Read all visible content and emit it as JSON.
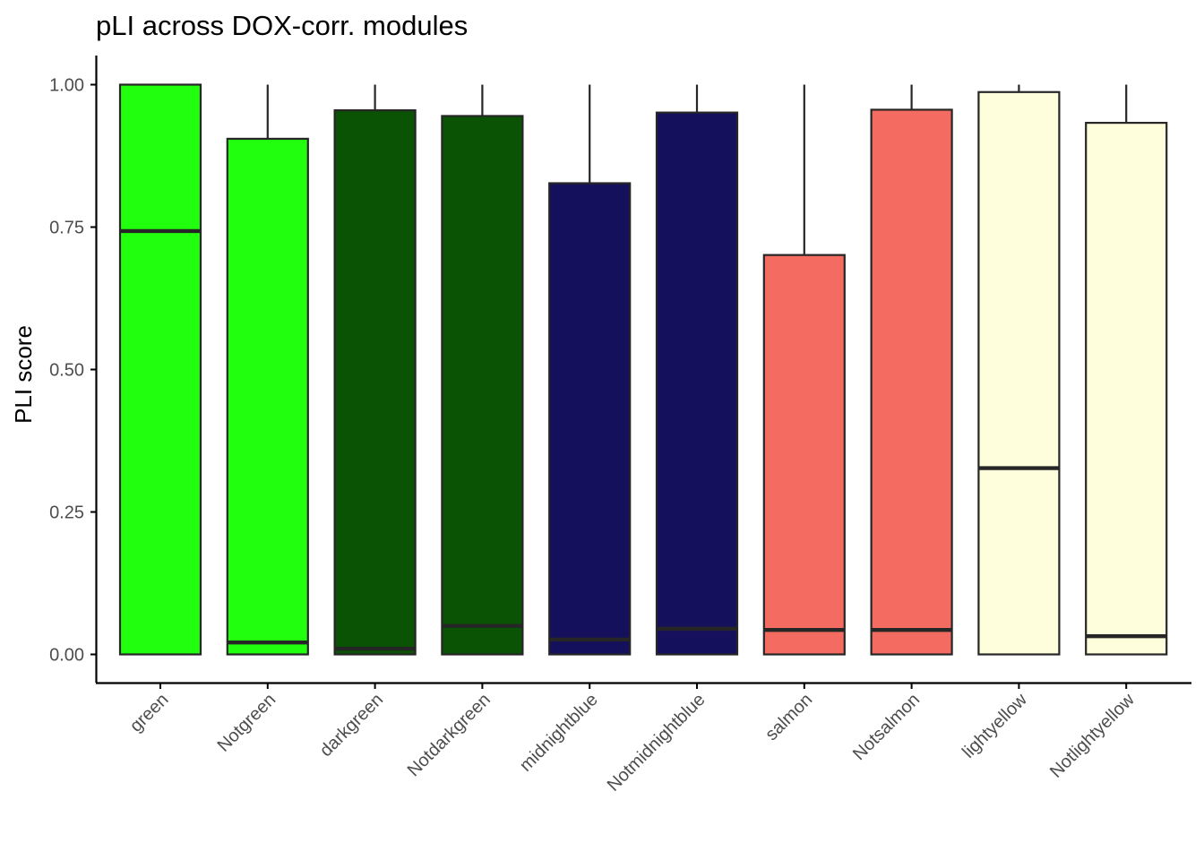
{
  "chart_data": {
    "type": "box",
    "title": "pLI across DOX-corr. modules",
    "xlabel": "",
    "ylabel": "PLI score",
    "ylim": [
      -0.05,
      1.05
    ],
    "yticks": [
      0.0,
      0.25,
      0.5,
      0.75,
      1.0
    ],
    "ytick_labels": [
      "0.00",
      "0.25",
      "0.50",
      "0.75",
      "1.00"
    ],
    "grid": false,
    "legend": "none",
    "categories": [
      "green",
      "Notgreen",
      "darkgreen",
      "Notdarkgreen",
      "midnightblue",
      "Notmidnightblue",
      "salmon",
      "Notsalmon",
      "lightyellow",
      "Notlightyellow"
    ],
    "boxes": [
      {
        "category": "green",
        "min": 0.0,
        "q1": 0.0,
        "median": 0.743,
        "q3": 1.0,
        "max": 1.0,
        "fill": "#22ff0e"
      },
      {
        "category": "Notgreen",
        "min": 0.0,
        "q1": 0.0,
        "median": 0.021,
        "q3": 0.905,
        "max": 1.0,
        "fill": "#22ff0e"
      },
      {
        "category": "darkgreen",
        "min": 0.0,
        "q1": 0.0,
        "median": 0.01,
        "q3": 0.955,
        "max": 1.0,
        "fill": "#0b5304"
      },
      {
        "category": "Notdarkgreen",
        "min": 0.0,
        "q1": 0.0,
        "median": 0.05,
        "q3": 0.945,
        "max": 1.0,
        "fill": "#0b5304"
      },
      {
        "category": "midnightblue",
        "min": 0.0,
        "q1": 0.0,
        "median": 0.026,
        "q3": 0.827,
        "max": 1.0,
        "fill": "#15105b"
      },
      {
        "category": "Notmidnightblue",
        "min": 0.0,
        "q1": 0.0,
        "median": 0.045,
        "q3": 0.951,
        "max": 1.0,
        "fill": "#15105b"
      },
      {
        "category": "salmon",
        "min": 0.0,
        "q1": 0.0,
        "median": 0.043,
        "q3": 0.701,
        "max": 1.0,
        "fill": "#f46b61"
      },
      {
        "category": "Notsalmon",
        "min": 0.0,
        "q1": 0.0,
        "median": 0.043,
        "q3": 0.956,
        "max": 1.0,
        "fill": "#f46b61"
      },
      {
        "category": "lightyellow",
        "min": 0.0,
        "q1": 0.0,
        "median": 0.327,
        "q3": 0.987,
        "max": 1.0,
        "fill": "#fffedc"
      },
      {
        "category": "Notlightyellow",
        "min": 0.0,
        "q1": 0.0,
        "median": 0.032,
        "q3": 0.933,
        "max": 1.0,
        "fill": "#fffedc"
      }
    ]
  }
}
